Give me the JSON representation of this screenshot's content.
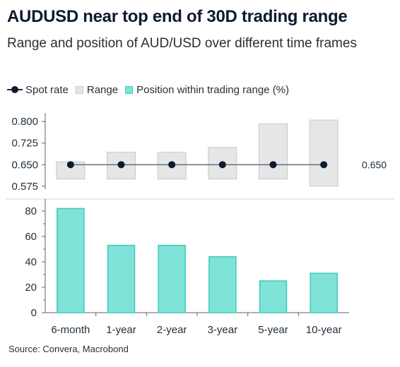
{
  "title": "AUDUSD near top end of 30D trading range",
  "subtitle": "Range and position of AUD/USD over different time frames",
  "legend": {
    "spot": "Spot rate",
    "range": "Range",
    "position": "Position within trading range (%)"
  },
  "colors": {
    "range_fill": "#e6e6e6",
    "range_stroke": "#c8c8c8",
    "bar_fill": "#7fe3d8",
    "bar_stroke": "#3fc9ba",
    "spot": "#0e1b2e",
    "spot_line": "#5f6f80"
  },
  "source": "Source: Convera, Macrobond",
  "chart_data": [
    {
      "type": "range",
      "categories": [
        "6-month",
        "1-year",
        "2-year",
        "3-year",
        "5-year",
        "10-year"
      ],
      "spot_value_label": "0.650",
      "series": [
        {
          "name": "Spot rate",
          "values": [
            0.65,
            0.65,
            0.65,
            0.65,
            0.65,
            0.65
          ]
        },
        {
          "name": "Range",
          "low": [
            0.6,
            0.6,
            0.6,
            0.6,
            0.6,
            0.575
          ],
          "high": [
            0.66,
            0.693,
            0.693,
            0.71,
            0.792,
            0.805
          ]
        }
      ],
      "yticks": [
        0.575,
        0.65,
        0.725,
        0.8
      ],
      "ytick_labels": [
        "0.575",
        "0.650",
        "0.725",
        "0.800"
      ],
      "ylim": [
        0.565,
        0.815
      ]
    },
    {
      "type": "bar",
      "categories": [
        "6-month",
        "1-year",
        "2-year",
        "3-year",
        "5-year",
        "10-year"
      ],
      "series": [
        {
          "name": "Position within trading range (%)",
          "values": [
            82,
            53,
            53,
            44,
            25,
            31
          ]
        }
      ],
      "yticks": [
        0,
        20,
        40,
        60,
        80
      ],
      "ytick_labels": [
        "0",
        "20",
        "40",
        "60",
        "80"
      ],
      "ylim": [
        0,
        85
      ]
    }
  ]
}
